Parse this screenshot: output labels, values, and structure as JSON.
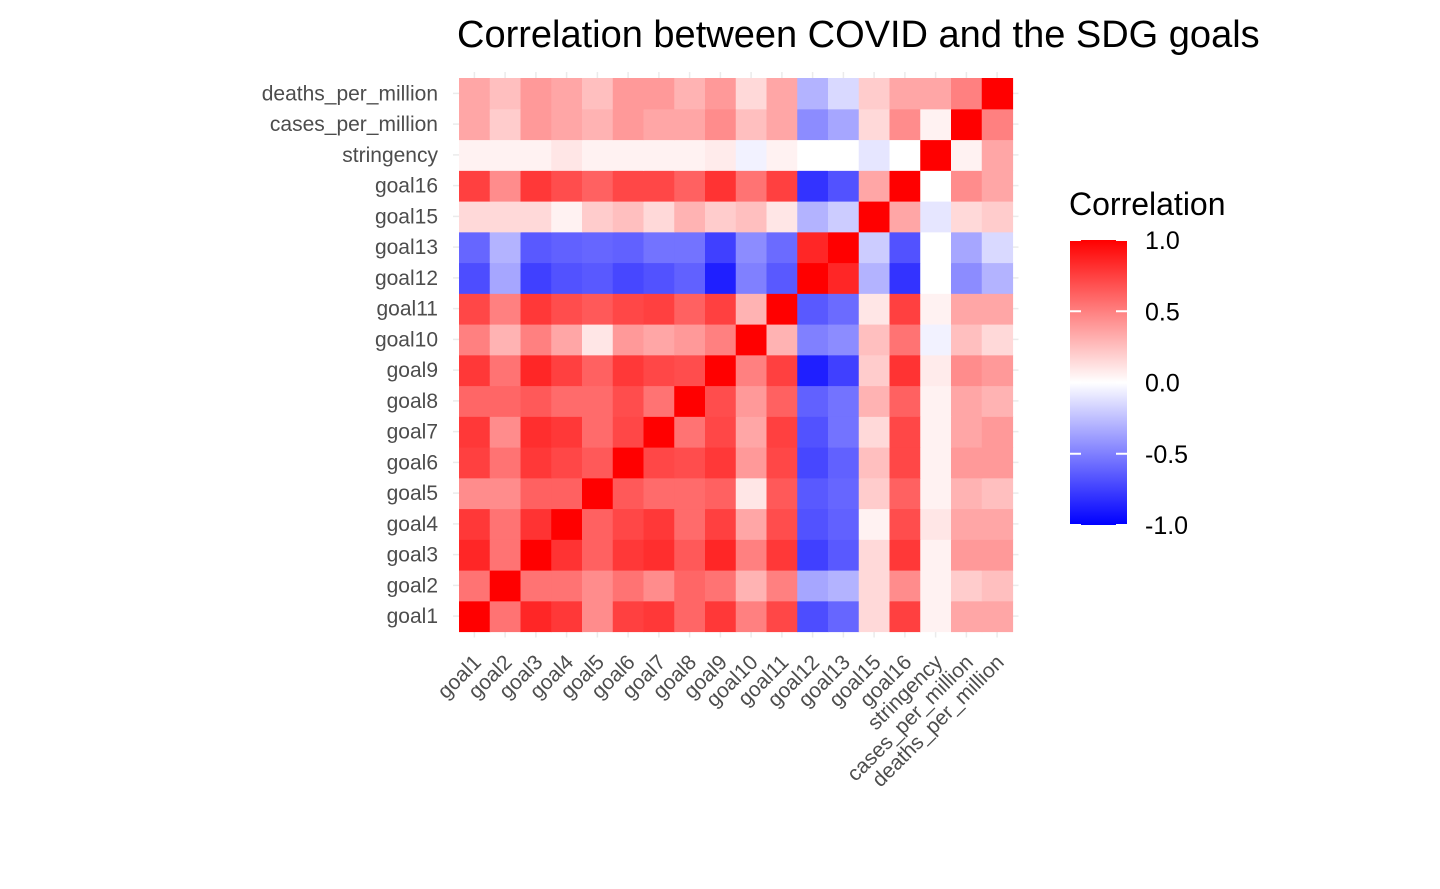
{
  "chart_data": {
    "type": "heatmap",
    "title": "Correlation between COVID and the SDG goals",
    "xlabel": "",
    "ylabel": "",
    "variables": [
      "goal1",
      "goal2",
      "goal3",
      "goal4",
      "goal5",
      "goal6",
      "goal7",
      "goal8",
      "goal9",
      "goal10",
      "goal11",
      "goal12",
      "goal13",
      "goal15",
      "goal16",
      "stringency",
      "cases_per_million",
      "deaths_per_million"
    ],
    "matrix": [
      [
        1.0,
        0.55,
        0.85,
        0.78,
        0.45,
        0.75,
        0.78,
        0.6,
        0.78,
        0.5,
        0.72,
        -0.7,
        -0.6,
        0.15,
        0.75,
        0.05,
        0.35,
        0.35
      ],
      [
        0.55,
        1.0,
        0.55,
        0.55,
        0.45,
        0.55,
        0.45,
        0.6,
        0.55,
        0.3,
        0.5,
        -0.35,
        -0.3,
        0.15,
        0.45,
        0.05,
        0.2,
        0.25
      ],
      [
        0.85,
        0.55,
        1.0,
        0.8,
        0.62,
        0.78,
        0.82,
        0.65,
        0.85,
        0.5,
        0.78,
        -0.75,
        -0.65,
        0.15,
        0.78,
        0.05,
        0.4,
        0.4
      ],
      [
        0.78,
        0.55,
        0.8,
        1.0,
        0.62,
        0.72,
        0.78,
        0.58,
        0.75,
        0.35,
        0.7,
        -0.68,
        -0.62,
        0.05,
        0.7,
        0.1,
        0.35,
        0.35
      ],
      [
        0.45,
        0.45,
        0.62,
        0.62,
        1.0,
        0.65,
        0.58,
        0.58,
        0.62,
        0.1,
        0.65,
        -0.65,
        -0.6,
        0.2,
        0.62,
        0.05,
        0.3,
        0.25
      ],
      [
        0.75,
        0.55,
        0.78,
        0.72,
        0.65,
        1.0,
        0.72,
        0.7,
        0.78,
        0.4,
        0.72,
        -0.72,
        -0.62,
        0.25,
        0.72,
        0.05,
        0.4,
        0.4
      ],
      [
        0.78,
        0.45,
        0.82,
        0.78,
        0.58,
        0.72,
        1.0,
        0.55,
        0.72,
        0.35,
        0.75,
        -0.68,
        -0.55,
        0.15,
        0.72,
        0.05,
        0.35,
        0.4
      ],
      [
        0.6,
        0.6,
        0.65,
        0.58,
        0.58,
        0.7,
        0.55,
        1.0,
        0.7,
        0.4,
        0.62,
        -0.62,
        -0.55,
        0.3,
        0.62,
        0.05,
        0.35,
        0.3
      ],
      [
        0.78,
        0.55,
        0.85,
        0.75,
        0.62,
        0.78,
        0.72,
        0.7,
        1.0,
        0.5,
        0.75,
        -0.88,
        -0.75,
        0.2,
        0.8,
        0.08,
        0.45,
        0.4
      ],
      [
        0.5,
        0.3,
        0.5,
        0.35,
        0.1,
        0.4,
        0.35,
        0.4,
        0.5,
        1.0,
        0.3,
        -0.5,
        -0.45,
        0.25,
        0.55,
        -0.05,
        0.25,
        0.15
      ],
      [
        0.72,
        0.5,
        0.78,
        0.7,
        0.65,
        0.72,
        0.75,
        0.62,
        0.75,
        0.3,
        1.0,
        -0.65,
        -0.58,
        0.1,
        0.75,
        0.05,
        0.35,
        0.35
      ],
      [
        -0.7,
        -0.35,
        -0.75,
        -0.68,
        -0.65,
        -0.72,
        -0.68,
        -0.62,
        -0.88,
        -0.5,
        -0.65,
        1.0,
        0.85,
        -0.3,
        -0.8,
        0.0,
        -0.45,
        -0.3
      ],
      [
        -0.6,
        -0.3,
        -0.65,
        -0.62,
        -0.6,
        -0.62,
        -0.55,
        -0.55,
        -0.75,
        -0.45,
        -0.58,
        0.85,
        1.0,
        -0.2,
        -0.68,
        0.0,
        -0.35,
        -0.15
      ],
      [
        0.15,
        0.15,
        0.15,
        0.05,
        0.2,
        0.25,
        0.15,
        0.3,
        0.2,
        0.25,
        0.1,
        -0.3,
        -0.2,
        1.0,
        0.35,
        -0.1,
        0.15,
        0.2
      ],
      [
        0.75,
        0.45,
        0.78,
        0.7,
        0.62,
        0.72,
        0.72,
        0.62,
        0.8,
        0.55,
        0.75,
        -0.8,
        -0.68,
        0.35,
        1.0,
        0.0,
        0.45,
        0.35
      ],
      [
        0.05,
        0.05,
        0.05,
        0.1,
        0.05,
        0.05,
        0.05,
        0.05,
        0.08,
        -0.05,
        0.05,
        0.0,
        0.0,
        -0.1,
        0.0,
        1.0,
        0.05,
        0.35
      ],
      [
        0.35,
        0.2,
        0.4,
        0.35,
        0.3,
        0.4,
        0.35,
        0.35,
        0.45,
        0.25,
        0.35,
        -0.45,
        -0.35,
        0.15,
        0.45,
        0.05,
        1.0,
        0.5
      ],
      [
        0.35,
        0.25,
        0.4,
        0.35,
        0.25,
        0.4,
        0.4,
        0.3,
        0.4,
        0.15,
        0.35,
        -0.3,
        -0.15,
        0.2,
        0.35,
        0.35,
        0.5,
        1.0
      ]
    ],
    "color_scale": {
      "low": "#0000FF",
      "mid": "#FFFFFF",
      "high": "#FF0000",
      "limits": [
        -1.0,
        1.0
      ]
    },
    "legend": {
      "title": "Correlation",
      "breaks": [
        1.0,
        0.5,
        0.0,
        -0.5,
        -1.0
      ],
      "labels": [
        "1.0",
        "0.5",
        "0.0",
        "-0.5",
        "-1.0"
      ],
      "placement": "right"
    },
    "grid": true
  }
}
